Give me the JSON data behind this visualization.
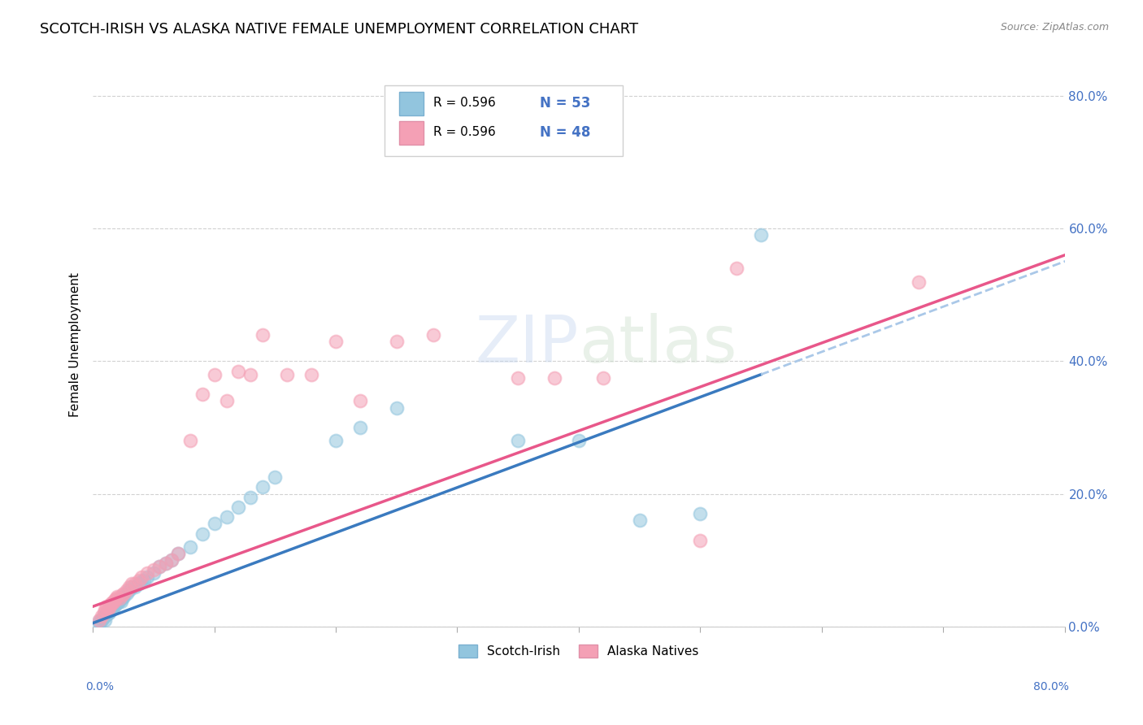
{
  "title": "SCOTCH-IRISH VS ALASKA NATIVE FEMALE UNEMPLOYMENT CORRELATION CHART",
  "source": "Source: ZipAtlas.com",
  "ylabel": "Female Unemployment",
  "y_tick_labels": [
    "0.0%",
    "20.0%",
    "40.0%",
    "60.0%",
    "80.0%"
  ],
  "y_tick_values": [
    0.0,
    0.2,
    0.4,
    0.6,
    0.8
  ],
  "x_range": [
    0.0,
    0.8
  ],
  "y_range": [
    0.0,
    0.85
  ],
  "watermark": "ZIPatlas",
  "blue_scatter_color": "#92c5de",
  "pink_scatter_color": "#f4a0b5",
  "blue_line_color": "#3a7abf",
  "pink_line_color": "#e8578a",
  "dashed_line_color": "#aac8e8",
  "background_color": "#ffffff",
  "grid_color": "#cccccc",
  "title_fontsize": 13,
  "legend_color": "#4472c4",
  "tick_color": "#4472c4",
  "scotch_irish_x": [
    0.005,
    0.005,
    0.007,
    0.008,
    0.009,
    0.01,
    0.01,
    0.011,
    0.012,
    0.013,
    0.013,
    0.014,
    0.015,
    0.015,
    0.016,
    0.017,
    0.018,
    0.019,
    0.02,
    0.021,
    0.022,
    0.023,
    0.024,
    0.025,
    0.028,
    0.03,
    0.032,
    0.035,
    0.038,
    0.04,
    0.042,
    0.045,
    0.05,
    0.055,
    0.06,
    0.065,
    0.07,
    0.08,
    0.09,
    0.1,
    0.11,
    0.12,
    0.13,
    0.14,
    0.15,
    0.2,
    0.22,
    0.25,
    0.35,
    0.4,
    0.45,
    0.5,
    0.55
  ],
  "scotch_irish_y": [
    0.005,
    0.008,
    0.01,
    0.012,
    0.015,
    0.01,
    0.015,
    0.018,
    0.02,
    0.02,
    0.022,
    0.025,
    0.025,
    0.028,
    0.03,
    0.03,
    0.032,
    0.035,
    0.035,
    0.038,
    0.04,
    0.038,
    0.042,
    0.045,
    0.05,
    0.055,
    0.06,
    0.06,
    0.065,
    0.068,
    0.07,
    0.075,
    0.08,
    0.09,
    0.095,
    0.1,
    0.11,
    0.12,
    0.14,
    0.155,
    0.165,
    0.18,
    0.195,
    0.21,
    0.225,
    0.28,
    0.3,
    0.33,
    0.28,
    0.28,
    0.16,
    0.17,
    0.59
  ],
  "alaska_native_x": [
    0.005,
    0.007,
    0.009,
    0.01,
    0.011,
    0.012,
    0.013,
    0.014,
    0.015,
    0.016,
    0.017,
    0.018,
    0.019,
    0.02,
    0.022,
    0.024,
    0.025,
    0.028,
    0.03,
    0.032,
    0.035,
    0.038,
    0.04,
    0.045,
    0.05,
    0.055,
    0.06,
    0.065,
    0.07,
    0.08,
    0.09,
    0.1,
    0.11,
    0.12,
    0.13,
    0.14,
    0.16,
    0.18,
    0.2,
    0.22,
    0.25,
    0.28,
    0.35,
    0.38,
    0.42,
    0.5,
    0.53,
    0.68
  ],
  "alaska_native_y": [
    0.01,
    0.015,
    0.02,
    0.025,
    0.03,
    0.025,
    0.028,
    0.032,
    0.035,
    0.035,
    0.038,
    0.04,
    0.042,
    0.045,
    0.042,
    0.048,
    0.05,
    0.055,
    0.06,
    0.065,
    0.065,
    0.07,
    0.075,
    0.08,
    0.085,
    0.09,
    0.095,
    0.1,
    0.11,
    0.28,
    0.35,
    0.38,
    0.34,
    0.385,
    0.38,
    0.44,
    0.38,
    0.38,
    0.43,
    0.34,
    0.43,
    0.44,
    0.375,
    0.375,
    0.375,
    0.13,
    0.54,
    0.52
  ],
  "si_line_x0": 0.0,
  "si_line_y0": 0.005,
  "si_line_x1": 0.55,
  "si_line_y1": 0.38,
  "an_line_x0": 0.0,
  "an_line_y0": 0.03,
  "an_line_x1": 0.8,
  "an_line_y1": 0.56
}
